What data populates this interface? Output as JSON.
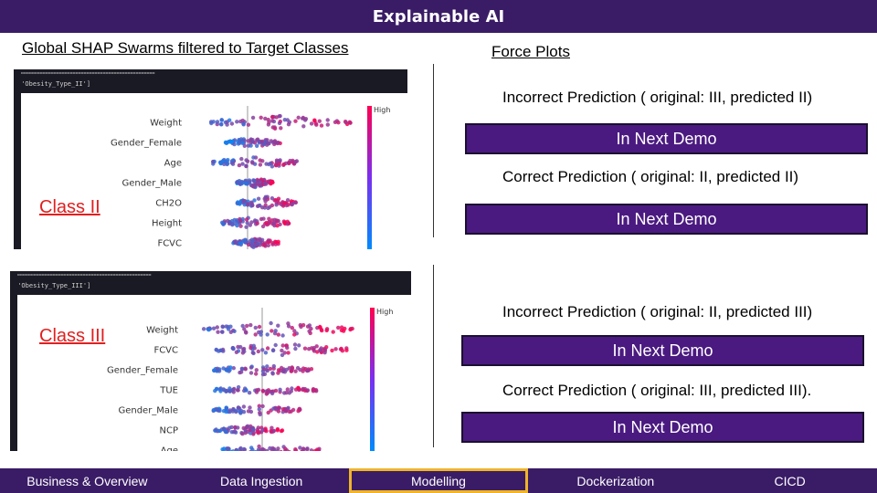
{
  "header": {
    "title": "Explainable AI"
  },
  "left": {
    "heading": "Global SHAP Swarms filtered to Target Classes",
    "panels": [
      {
        "rule": "==================================================",
        "target": "['Obesity_Type_II']",
        "high_label": "High",
        "class_label": "Class II",
        "features": [
          "Weight",
          "Gender_Female",
          "Age",
          "Gender_Male",
          "CH2O",
          "Height",
          "FCVC"
        ]
      },
      {
        "rule": "==================================================",
        "target": "['Obesity_Type_III']",
        "high_label": "High",
        "class_label": "Class III",
        "features": [
          "Weight",
          "FCVC",
          "Gender_Female",
          "TUE",
          "Gender_Male",
          "NCP",
          "Age"
        ]
      }
    ]
  },
  "right": {
    "heading": "Force Plots",
    "items": [
      {
        "title": "Incorrect Prediction ( original: III, predicted II)",
        "button": "In Next Demo"
      },
      {
        "title": "Correct Prediction ( original: II, predicted II)",
        "button": "In Next Demo"
      },
      {
        "title": "Incorrect Prediction ( original: II, predicted III)",
        "button": "In Next Demo"
      },
      {
        "title": "Correct Prediction ( original: III, predicted III).",
        "button": "In Next Demo"
      }
    ]
  },
  "nav": {
    "items": [
      "Business & Overview",
      "Data Ingestion",
      "Modelling",
      "Dockerization",
      "CICD"
    ],
    "active": "Modelling"
  },
  "colors": {
    "header_bg": "#3a1c66",
    "button_bg": "#4a1a80",
    "active_border": "#f0b429",
    "class_label": "#e02020",
    "shap_high": "#ff0051",
    "shap_low": "#008bfb"
  }
}
